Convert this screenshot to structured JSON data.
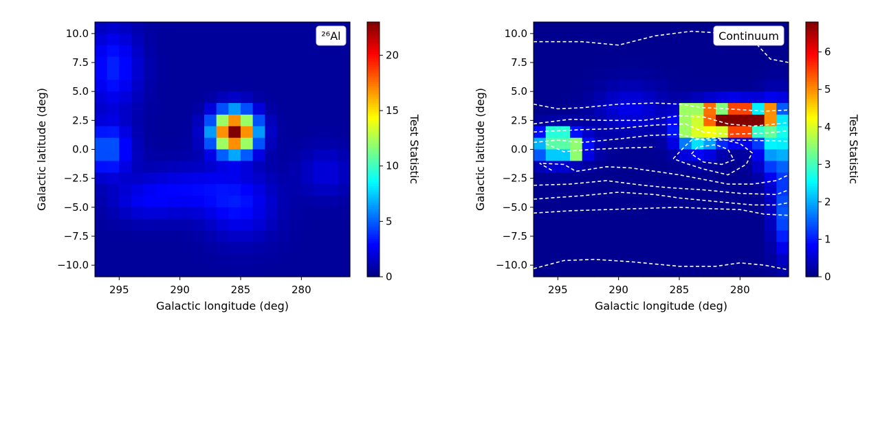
{
  "chart_data": [
    {
      "type": "heatmap",
      "panel_label": "²⁶Al",
      "xlabel": "Galactic longitude (deg)",
      "ylabel": "Galactic latitude (deg)",
      "xlim": [
        297,
        276
      ],
      "ylim": [
        -11,
        11
      ],
      "x_ticks": [
        "295",
        "290",
        "285",
        "280"
      ],
      "y_ticks": [
        "10.0",
        "7.5",
        "5.0",
        "2.5",
        "0.0",
        "−2.5",
        "−5.0",
        "−7.5",
        "−10.0"
      ],
      "x_bin_edges_deg": [
        297,
        276
      ],
      "y_bin_edges_deg": [
        -11,
        11
      ],
      "grid_shape": [
        22,
        21
      ],
      "colormap": "jet",
      "colorbar": {
        "label": "Test Statistic",
        "min": 0,
        "max": 23,
        "ticks": [
          "0",
          "5",
          "10",
          "15",
          "20"
        ]
      },
      "peak": {
        "l": 285.5,
        "b": 1.5,
        "ts": 23
      },
      "source_components": [
        {
          "l": 285.5,
          "b": 1.5,
          "amp": 23,
          "sl": 1.2,
          "sb": 1.2
        },
        {
          "l": 296,
          "b": 0,
          "amp": 4.5,
          "sl": 1.3,
          "sb": 1.5
        },
        {
          "l": 295.5,
          "b": 7,
          "amp": 3,
          "sl": 1.5,
          "sb": 2.5
        },
        {
          "l": 285,
          "b": -5,
          "amp": 2.2,
          "sl": 2,
          "sb": 2
        },
        {
          "l": 289,
          "b": -3.5,
          "amp": 2,
          "sl": 3,
          "sb": 1.5
        },
        {
          "l": 293,
          "b": -4.5,
          "amp": 1.5,
          "sl": 2,
          "sb": 1.2
        },
        {
          "l": 278,
          "b": -2,
          "amp": 1.5,
          "sl": 1.5,
          "sb": 1.5
        }
      ],
      "background_ts": 0.6
    },
    {
      "type": "heatmap",
      "panel_label": "Continuum",
      "xlabel": "Galactic longitude (deg)",
      "ylabel": "Galactic latitude (deg)",
      "xlim": [
        297,
        276
      ],
      "ylim": [
        -11,
        11
      ],
      "x_ticks": [
        "295",
        "290",
        "285",
        "280"
      ],
      "y_ticks": [
        "10.0",
        "7.5",
        "5.0",
        "2.5",
        "0.0",
        "−2.5",
        "−5.0",
        "−7.5",
        "−10.0"
      ],
      "grid_shape": [
        22,
        21
      ],
      "colormap": "jet",
      "colorbar": {
        "label": "Test Statistic",
        "min": 0,
        "max": 6.8,
        "ticks": [
          "0",
          "1",
          "2",
          "3",
          "4",
          "5",
          "6"
        ]
      },
      "peak": {
        "l": 280,
        "b": 2.5,
        "ts": 6.8
      },
      "hot_cells": [
        {
          "l": [
            282,
            278
          ],
          "b": [
            2,
            3
          ],
          "ts": 6.8
        },
        {
          "l": [
            283,
            282
          ],
          "b": [
            2,
            4
          ],
          "ts": 5.2
        },
        {
          "l": [
            278,
            277
          ],
          "b": [
            2,
            4
          ],
          "ts": 5
        },
        {
          "l": [
            281,
            279
          ],
          "b": [
            1,
            2
          ],
          "ts": 5.5
        },
        {
          "l": [
            281,
            279
          ],
          "b": [
            3,
            4
          ],
          "ts": 5.5
        },
        {
          "l": [
            285,
            283
          ],
          "b": [
            1,
            4
          ],
          "ts": 3.6
        },
        {
          "l": [
            296,
            294
          ],
          "b": [
            0,
            2
          ],
          "ts": 2.8
        },
        {
          "l": [
            294,
            293
          ],
          "b": [
            -1,
            1
          ],
          "ts": 3.5
        }
      ],
      "source_components": [
        {
          "l": 280.5,
          "b": 2.5,
          "amp": 6.8,
          "sl": 1.8,
          "sb": 0.9
        },
        {
          "l": 295,
          "b": 0.3,
          "amp": 3.3,
          "sl": 1.5,
          "sb": 0.9
        },
        {
          "l": 283.5,
          "b": 1.5,
          "amp": 3,
          "sl": 1.2,
          "sb": 1.2
        },
        {
          "l": 277,
          "b": 1,
          "amp": 2.6,
          "sl": 1,
          "sb": 2
        },
        {
          "l": 276.5,
          "b": -5.5,
          "amp": 1.3,
          "sl": 0.6,
          "sb": 2.5
        },
        {
          "l": 289,
          "b": 3.5,
          "amp": 0.6,
          "sl": 2,
          "sb": 1.5
        }
      ],
      "background_ts": 0.1,
      "contours": {
        "style": "white dashed",
        "lines": [
          [
            [
              297,
              9.3
            ],
            [
              293,
              9.3
            ],
            [
              290,
              9
            ],
            [
              287,
              9.8
            ],
            [
              284,
              10.2
            ],
            [
              281,
              10
            ],
            [
              279,
              9.5
            ],
            [
              277.5,
              7.8
            ],
            [
              276,
              7.5
            ]
          ],
          [
            [
              297,
              3.9
            ],
            [
              295,
              3.5
            ],
            [
              293,
              3.6
            ],
            [
              290,
              3.9
            ],
            [
              287,
              4.0
            ],
            [
              285,
              3.9
            ],
            [
              283,
              3.6
            ],
            [
              281,
              3.5
            ],
            [
              278,
              3.3
            ],
            [
              276,
              3.4
            ]
          ],
          [
            [
              297,
              2.2
            ],
            [
              294,
              2.6
            ],
            [
              291,
              2.5
            ],
            [
              288,
              2.5
            ],
            [
              285,
              2.9
            ],
            [
              283,
              2.8
            ],
            [
              281,
              2.2
            ],
            [
              279,
              2.0
            ],
            [
              276,
              2.3
            ]
          ],
          [
            [
              297,
              1.5
            ],
            [
              293,
              1.7
            ],
            [
              290,
              1.8
            ],
            [
              287,
              2.1
            ],
            [
              284.5,
              2.2
            ],
            [
              283,
              1.5
            ],
            [
              281,
              1.3
            ],
            [
              278,
              1.4
            ],
            [
              276,
              1.6
            ]
          ],
          [
            [
              297,
              0.6
            ],
            [
              295,
              0.8
            ],
            [
              293,
              0.6
            ],
            [
              290,
              0.9
            ],
            [
              287.5,
              1.2
            ],
            [
              285,
              1.3
            ],
            [
              283,
              0.8
            ],
            [
              280,
              0.8
            ],
            [
              276,
              0.7
            ]
          ],
          [
            [
              296,
              0.5
            ],
            [
              294.5,
              -0.2
            ],
            [
              293.5,
              -0.1
            ],
            [
              292,
              0
            ],
            [
              290,
              0.1
            ],
            [
              287,
              0.2
            ]
          ],
          [
            [
              285.5,
              -0.8
            ],
            [
              284.5,
              0.3
            ],
            [
              284,
              0.8
            ],
            [
              282,
              1
            ],
            [
              280,
              0.5
            ],
            [
              279,
              -0.3
            ],
            [
              279.5,
              -1.3
            ],
            [
              281,
              -2.2
            ],
            [
              283,
              -1.7
            ],
            [
              284.5,
              -1.2
            ],
            [
              285.5,
              -0.8
            ]
          ],
          [
            [
              284,
              -0.4
            ],
            [
              283.5,
              0.2
            ],
            [
              282,
              0.4
            ],
            [
              281,
              0
            ],
            [
              280.5,
              -0.9
            ],
            [
              281.5,
              -1.3
            ],
            [
              283,
              -1.1
            ],
            [
              284,
              -0.4
            ]
          ],
          [
            [
              295.5,
              -1.8
            ],
            [
              296.5,
              -1.2
            ],
            [
              294.5,
              -1.3
            ],
            [
              293.5,
              -1.9
            ],
            [
              291,
              -1.5
            ],
            [
              289,
              -1.6
            ],
            [
              287,
              -1.9
            ],
            [
              285,
              -2.2
            ],
            [
              283,
              -2.6
            ],
            [
              281,
              -3.0
            ],
            [
              279,
              -3.0
            ],
            [
              277,
              -2.7
            ],
            [
              276,
              -2.2
            ]
          ],
          [
            [
              297,
              -3.1
            ],
            [
              294,
              -3.0
            ],
            [
              291,
              -2.7
            ],
            [
              288,
              -3.1
            ],
            [
              286,
              -3.3
            ],
            [
              283,
              -3.5
            ],
            [
              280,
              -3.8
            ],
            [
              277,
              -3.9
            ],
            [
              276,
              -3.5
            ]
          ],
          [
            [
              297,
              -4.3
            ],
            [
              293,
              -4.0
            ],
            [
              290,
              -3.7
            ],
            [
              287,
              -3.9
            ],
            [
              285,
              -4.2
            ],
            [
              282,
              -4.5
            ],
            [
              279,
              -4.8
            ],
            [
              277,
              -4.8
            ],
            [
              276,
              -4.6
            ]
          ],
          [
            [
              297,
              -5.5
            ],
            [
              294,
              -5.3
            ],
            [
              291,
              -5.2
            ],
            [
              288,
              -5.1
            ],
            [
              285,
              -5.0
            ],
            [
              283,
              -5.1
            ],
            [
              280,
              -5.2
            ],
            [
              278,
              -5.6
            ],
            [
              276,
              -5.7
            ]
          ],
          [
            [
              297,
              -10.3
            ],
            [
              294.5,
              -9.6
            ],
            [
              292,
              -9.5
            ],
            [
              289,
              -9.7
            ],
            [
              285,
              -10.1
            ],
            [
              282,
              -10.1
            ],
            [
              280,
              -9.8
            ],
            [
              278,
              -10.0
            ],
            [
              276,
              -10.4
            ]
          ]
        ]
      }
    }
  ]
}
